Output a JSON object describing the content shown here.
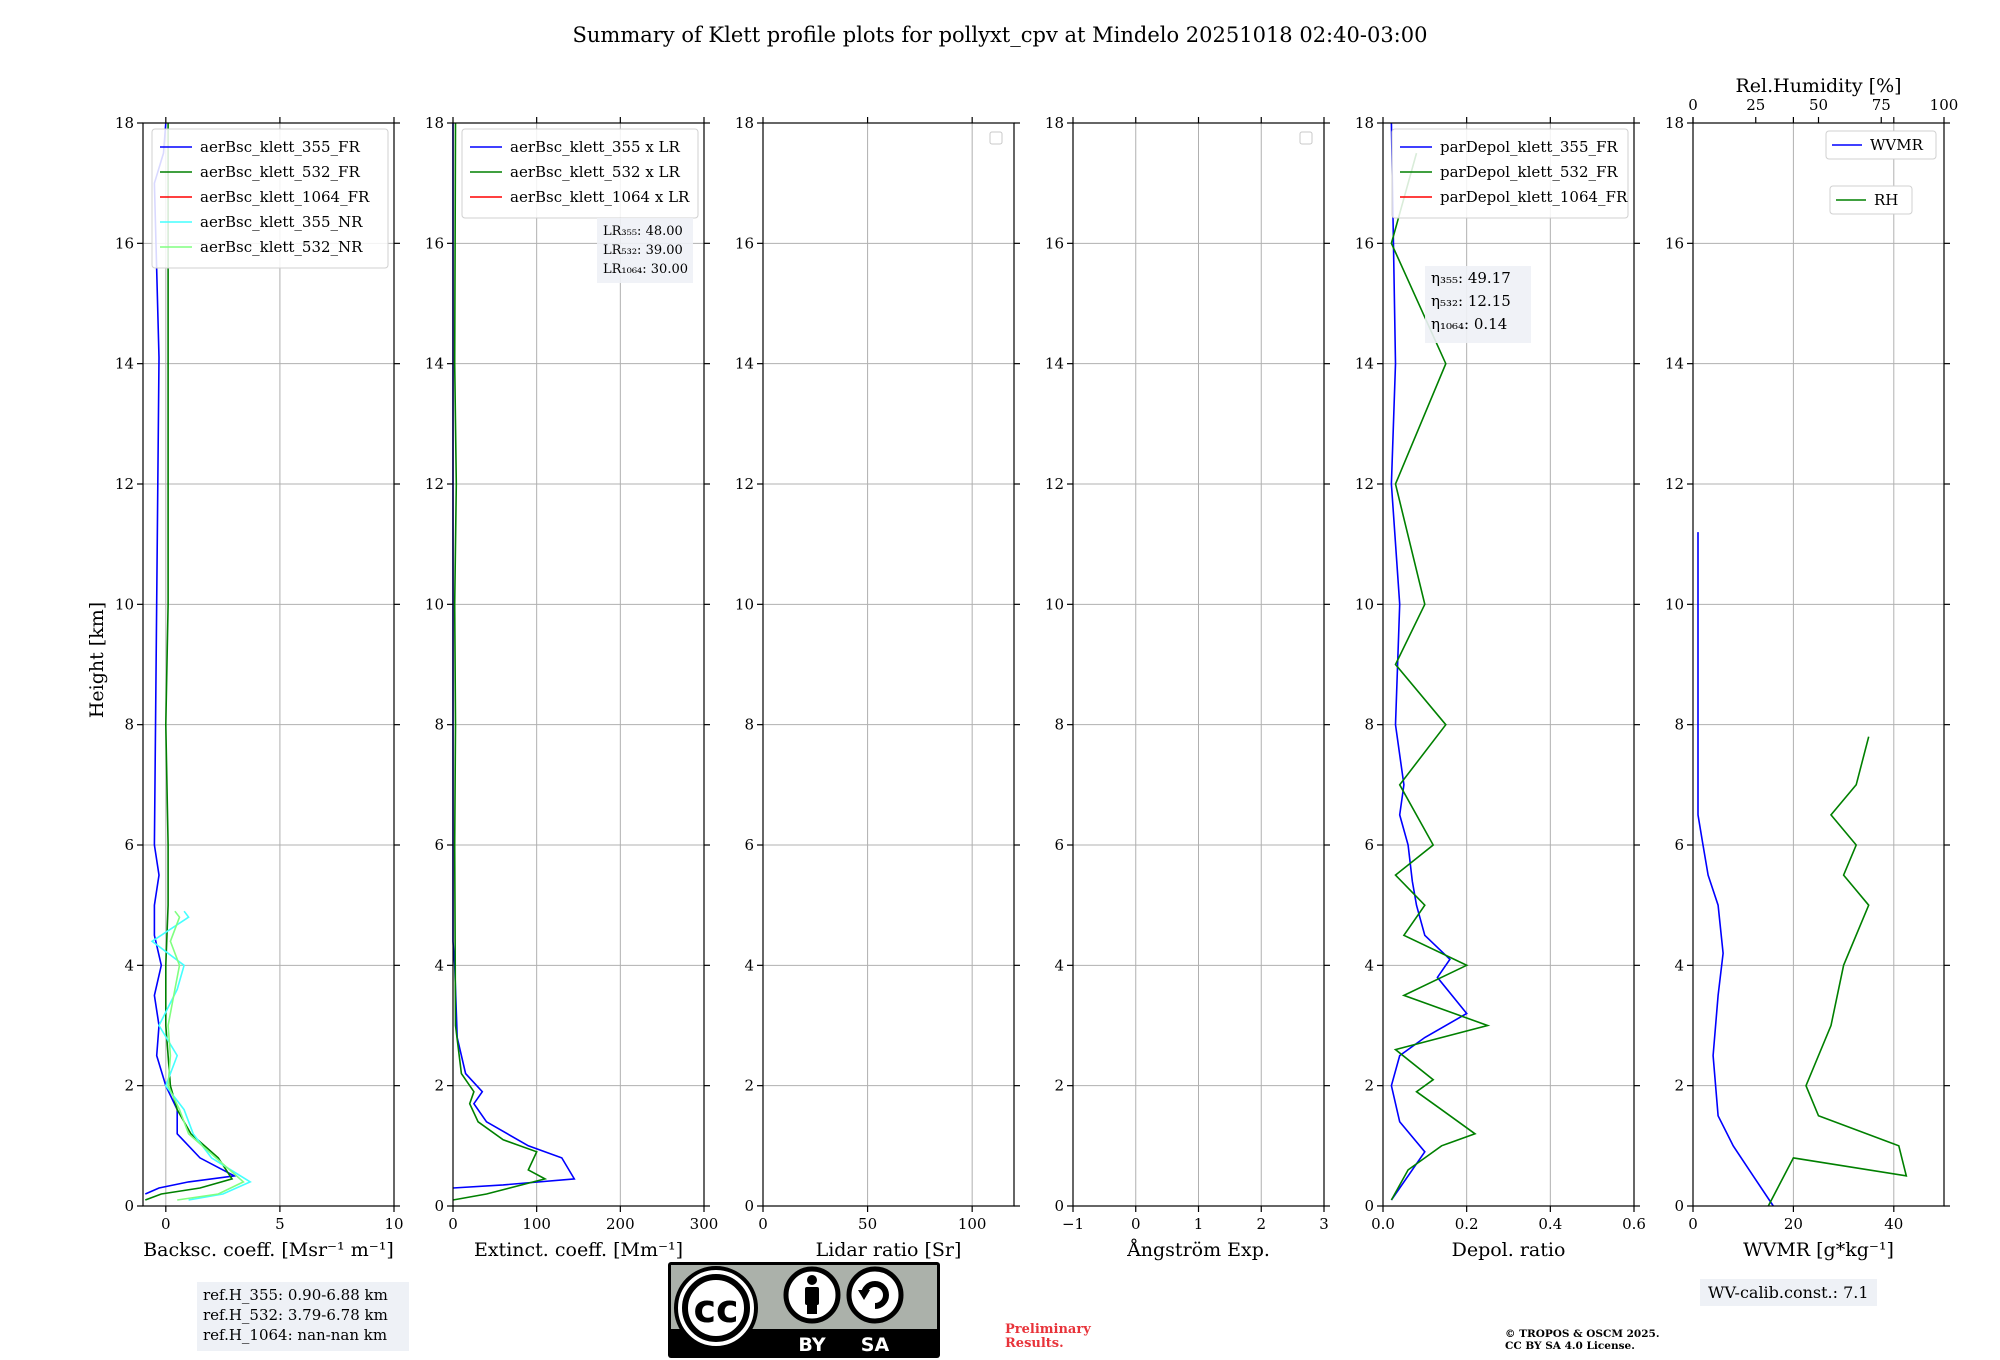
{
  "title": "Summary of Klett profile plots for pollyxt_cpv at Mindelo 20251018 02:40-03:00",
  "ylabel": "Height [km]",
  "yticks": [
    0,
    2,
    4,
    6,
    8,
    10,
    12,
    14,
    16,
    18
  ],
  "chart_data": [
    {
      "type": "line",
      "xlabel": "Backsc. coeff. [Msr⁻¹ m⁻¹]",
      "xlim": [
        -1,
        10
      ],
      "ylim": [
        0,
        18
      ],
      "xticks": [
        0,
        5,
        10
      ],
      "grid": true,
      "legend": "top-right",
      "series": [
        {
          "name": "aerBsc_klett_355_FR",
          "color": "#0000ff",
          "x": [
            -0.9,
            -0.3,
            1.0,
            3.0,
            1.5,
            0.5,
            0.5,
            0.0,
            -0.4,
            -0.3,
            -0.5,
            -0.2,
            -0.5,
            -0.5,
            -0.3,
            -0.5,
            -0.3,
            -0.5,
            -0.1,
            0.0
          ],
          "y": [
            0.2,
            0.3,
            0.4,
            0.5,
            0.8,
            1.2,
            1.6,
            2.0,
            2.5,
            3.0,
            3.5,
            4.0,
            4.5,
            5.0,
            5.5,
            6.0,
            14.1,
            17.0,
            17.5,
            18.0
          ]
        },
        {
          "name": "aerBsc_klett_532_FR",
          "color": "#008000",
          "x": [
            -0.9,
            -0.2,
            1.5,
            2.9,
            2.3,
            1.1,
            0.5,
            0.2,
            0.0,
            0.0,
            0.1,
            0.1,
            0.0,
            0.1,
            0.1,
            0.1,
            0.1,
            0.1,
            0.1
          ],
          "y": [
            0.1,
            0.2,
            0.3,
            0.45,
            0.8,
            1.2,
            1.6,
            2.0,
            3.0,
            4.0,
            5.0,
            6.0,
            8.0,
            10.0,
            12.0,
            14.0,
            16.0,
            17.0,
            18.0
          ]
        },
        {
          "name": "aerBsc_klett_1064_FR",
          "color": "#ff0000",
          "x": [],
          "y": []
        },
        {
          "name": "aerBsc_klett_355_NR",
          "color": "#44ffff",
          "x": [
            1.0,
            2.5,
            3.7,
            2.0,
            1.2,
            0.8,
            0.0,
            0.5,
            -0.3,
            0.5,
            0.8,
            -0.6,
            1.0,
            0.8
          ],
          "y": [
            0.1,
            0.2,
            0.4,
            0.8,
            1.2,
            1.6,
            2.0,
            2.5,
            3.0,
            3.6,
            4.0,
            4.4,
            4.8,
            4.9
          ]
        },
        {
          "name": "aerBsc_klett_532_NR",
          "color": "#80ff80",
          "x": [
            0.5,
            2.3,
            3.4,
            2.2,
            1.0,
            0.6,
            0.1,
            0.2,
            0.1,
            0.4,
            0.6,
            0.2,
            0.6,
            0.4
          ],
          "y": [
            0.1,
            0.2,
            0.4,
            0.8,
            1.2,
            1.6,
            2.0,
            2.5,
            3.0,
            3.6,
            4.0,
            4.4,
            4.8,
            4.9
          ]
        }
      ]
    },
    {
      "type": "line",
      "xlabel": "Extinct. coeff. [Mm⁻¹]",
      "xlim": [
        0,
        300
      ],
      "ylim": [
        0,
        18
      ],
      "xticks": [
        0,
        100,
        200,
        300
      ],
      "grid": true,
      "legend": "top-right",
      "annotation": [
        "LR₃₅₅: 48.00",
        "LR₅₃₂: 39.00",
        "LR₁₀₆₄: 30.00"
      ],
      "series": [
        {
          "name": "aerBsc_klett_355 x LR",
          "color": "#0000ff",
          "x": [
            0,
            60,
            145,
            130,
            90,
            40,
            25,
            35,
            15,
            5,
            2,
            0,
            0,
            0
          ],
          "y": [
            0.3,
            0.35,
            0.45,
            0.8,
            1.0,
            1.4,
            1.7,
            1.9,
            2.2,
            2.8,
            4.0,
            4.4,
            8.0,
            18.0
          ]
        },
        {
          "name": "aerBsc_klett_532 x LR",
          "color": "#008000",
          "x": [
            0,
            40,
            110,
            90,
            100,
            60,
            30,
            20,
            25,
            10,
            3,
            2,
            3,
            2,
            4,
            2,
            3
          ],
          "y": [
            0.1,
            0.2,
            0.45,
            0.6,
            0.9,
            1.1,
            1.4,
            1.7,
            1.9,
            2.2,
            3.0,
            6.0,
            8.0,
            10.0,
            12.0,
            14.0,
            18.0
          ]
        },
        {
          "name": "aerBsc_klett_1064 x LR",
          "color": "#ff0000",
          "x": [],
          "y": []
        }
      ]
    },
    {
      "type": "line",
      "xlabel": "Lidar ratio [Sr]",
      "xlim": [
        0,
        120
      ],
      "ylim": [
        0,
        18
      ],
      "xticks": [
        0,
        50,
        100
      ],
      "grid": true,
      "legend": "top-right",
      "series": []
    },
    {
      "type": "line",
      "xlabel": "Ångström Exp.",
      "xlim": [
        -1,
        3
      ],
      "ylim": [
        0,
        18
      ],
      "xticks": [
        -1,
        0,
        1,
        2,
        3
      ],
      "grid": true,
      "legend": "top-right",
      "series": []
    },
    {
      "type": "line",
      "xlabel": "Depol. ratio",
      "xlim": [
        0,
        0.6
      ],
      "ylim": [
        0,
        18
      ],
      "xticks": [
        0.0,
        0.2,
        0.4,
        0.6
      ],
      "grid": true,
      "legend": "top-right",
      "annotation": [
        "η₃₅₅: 49.17",
        "η₅₃₂: 12.15",
        "η₁₀₆₄: 0.14"
      ],
      "series": [
        {
          "name": "parDepol_klett_355_FR",
          "color": "#0000ff",
          "x": [
            0.02,
            0.1,
            0.04,
            0.02,
            0.04,
            0.1,
            0.2,
            0.13,
            0.16,
            0.1,
            0.08,
            0.07,
            0.06,
            0.04,
            0.05,
            0.03,
            0.04,
            0.02,
            0.03,
            0.02
          ],
          "y": [
            0.1,
            0.9,
            1.4,
            2.0,
            2.5,
            2.8,
            3.2,
            3.8,
            4.1,
            4.5,
            5.0,
            5.4,
            6.0,
            6.5,
            7.0,
            8.0,
            10.0,
            12.0,
            14.0,
            18.0
          ]
        },
        {
          "name": "parDepol_klett_532_FR",
          "color": "#008000",
          "x": [
            0.02,
            0.06,
            0.14,
            0.22,
            0.14,
            0.08,
            0.12,
            0.03,
            0.25,
            0.05,
            0.2,
            0.05,
            0.1,
            0.03,
            0.12,
            0.04,
            0.15,
            0.03,
            0.1,
            0.03,
            0.15,
            0.02,
            0.08
          ],
          "y": [
            0.1,
            0.6,
            1.0,
            1.2,
            1.6,
            1.9,
            2.1,
            2.6,
            3.0,
            3.5,
            4.0,
            4.5,
            5.0,
            5.5,
            6.0,
            7.0,
            8.0,
            9.0,
            10.0,
            12.0,
            14.0,
            16.0,
            17.5
          ]
        },
        {
          "name": "parDepol_klett_1064_FR",
          "color": "#ff0000",
          "x": [],
          "y": []
        }
      ]
    },
    {
      "type": "line",
      "xlabel": "WVMR [g*kg⁻¹]",
      "xlim": [
        0,
        50
      ],
      "ylim": [
        0,
        18
      ],
      "xticks": [
        0,
        20,
        40
      ],
      "x2label": "Rel.Humidity [%]",
      "x2lim": [
        0,
        100
      ],
      "x2ticks": [
        0,
        25,
        50,
        75,
        100
      ],
      "grid": true,
      "legend": "top-right",
      "series": [
        {
          "name": "WVMR",
          "axis": "bottom",
          "color": "#0000ff",
          "x": [
            16,
            12,
            8,
            5,
            4,
            5,
            6,
            5,
            3,
            2,
            1,
            1,
            1,
            1
          ],
          "y": [
            0.0,
            0.5,
            1.0,
            1.5,
            2.5,
            3.5,
            4.2,
            5.0,
            5.5,
            6.0,
            6.5,
            7.5,
            8.7,
            11.2
          ]
        },
        {
          "name": "RH",
          "axis": "top",
          "color": "#008000",
          "x": [
            30,
            40,
            85,
            82,
            50,
            45,
            55,
            60,
            70,
            60,
            65,
            55,
            65,
            70
          ],
          "y": [
            0.0,
            0.8,
            0.5,
            1.0,
            1.5,
            2.0,
            3.0,
            4.0,
            5.0,
            5.5,
            6.0,
            6.5,
            7.0,
            7.8
          ]
        }
      ]
    }
  ],
  "refbox": {
    "line1": "ref.H_355: 0.90-6.88 km",
    "line2": "ref.H_532: 3.79-6.78 km",
    "line3": "ref.H_1064: nan-nan km"
  },
  "wvbox": "WV-calib.const.: 7.1",
  "prelim": {
    "line1": "Preliminary",
    "line2": "Results."
  },
  "copyright": {
    "line1": "© TROPOS & OSCM 2025.",
    "line2": "CC BY SA 4.0 License."
  },
  "cclogo": {
    "cc": "cc",
    "by": "BY",
    "sa": "SA"
  }
}
